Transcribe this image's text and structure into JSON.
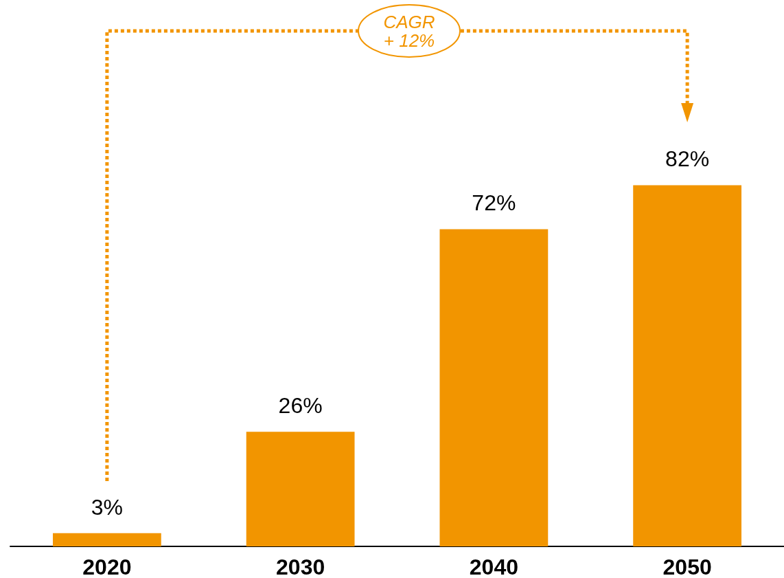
{
  "chart_data": {
    "type": "bar",
    "categories": [
      "2020",
      "2030",
      "2040",
      "2050"
    ],
    "values": [
      3,
      26,
      72,
      82
    ],
    "value_labels": [
      "3%",
      "26%",
      "72%",
      "82%"
    ],
    "color": "#f29500",
    "annotations": [
      "CAGR\n+ 12%"
    ]
  }
}
